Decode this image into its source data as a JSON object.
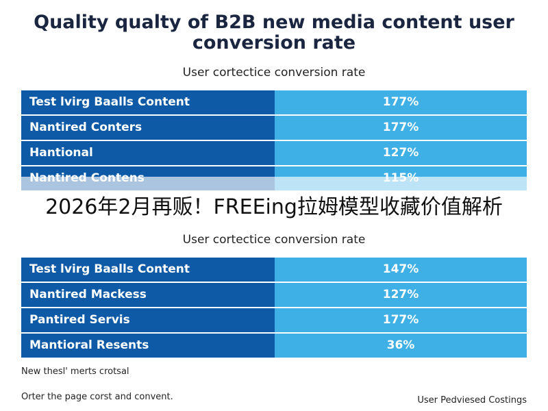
{
  "chart_data": {
    "type": "table",
    "title": "Quality qualty of B2B new media content user conversion rate",
    "tables": [
      {
        "subtitle": "User cortectice conversion rate",
        "rows": [
          {
            "label": "Test lvirg Baalls Content",
            "value": "177%"
          },
          {
            "label": "Nantired Conters",
            "value": "177%"
          },
          {
            "label": "Hantional",
            "value": "127%"
          },
          {
            "label": "Nantired Contens",
            "value": "115%"
          }
        ]
      },
      {
        "subtitle": "User cortectice conversion rate",
        "rows": [
          {
            "label": "Test lvirg Baalls Content",
            "value": "147%"
          },
          {
            "label": "Nantired Mackess",
            "value": "127%"
          },
          {
            "label": "Pantired Servis",
            "value": "177%"
          },
          {
            "label": "Mantioral Resents",
            "value": "36%"
          }
        ]
      }
    ]
  },
  "overlay": {
    "text": "2026年2月再贩！FREEing拉姆模型收藏价值解析"
  },
  "notes": {
    "note1": "New thesl' merts crotsal",
    "note2": "Orter the page corst and convent.",
    "note3": "User Pedviesed Costings"
  },
  "colors": {
    "label_bg": "#0f5aa6",
    "value_bg": "#3fb0e6",
    "title": "#1a2540"
  }
}
